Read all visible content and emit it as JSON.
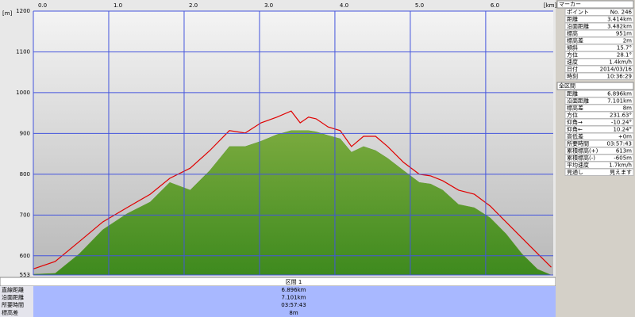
{
  "chart_data": {
    "type": "area-line",
    "y_unit": "[m]",
    "x_unit": "[km]",
    "xlim": [
      0,
      6.896
    ],
    "xticks": [
      {
        "value": 0,
        "label": "0.0"
      },
      {
        "value": 1,
        "label": "1.0"
      },
      {
        "value": 2,
        "label": "2.0"
      },
      {
        "value": 3,
        "label": "3.0"
      },
      {
        "value": 4,
        "label": "4.0"
      },
      {
        "value": 5,
        "label": "5.0"
      },
      {
        "value": 6,
        "label": "6.0"
      }
    ],
    "ylim": [
      553,
      1200
    ],
    "yticks": [
      553,
      600,
      700,
      800,
      900,
      1000,
      1100,
      1200
    ],
    "grid": true,
    "x": [
      0,
      0.29,
      0.61,
      0.92,
      1.24,
      1.55,
      1.81,
      2.08,
      2.34,
      2.6,
      2.81,
      3.02,
      3.23,
      3.42,
      3.54,
      3.65,
      3.75,
      3.91,
      4.07,
      4.22,
      4.38,
      4.54,
      4.7,
      4.91,
      5.12,
      5.27,
      5.43,
      5.64,
      5.85,
      6.06,
      6.27,
      6.48,
      6.69,
      6.87
    ],
    "series": [
      {
        "kind": "area",
        "color": "#5f9a2e",
        "values": [
          555,
          557,
          605,
          664,
          703,
          732,
          780,
          761,
          809,
          868,
          868,
          881,
          897,
          907,
          907,
          907,
          904,
          895,
          887,
          854,
          868,
          858,
          839,
          809,
          780,
          776,
          761,
          726,
          718,
          693,
          654,
          605,
          567,
          553
        ]
      },
      {
        "kind": "line",
        "color": "#e00000",
        "values": [
          568,
          586,
          635,
          683,
          718,
          751,
          790,
          815,
          858,
          907,
          901,
          926,
          940,
          955,
          926,
          940,
          936,
          916,
          907,
          868,
          893,
          893,
          868,
          829,
          800,
          796,
          784,
          761,
          751,
          722,
          683,
          644,
          605,
          572
        ]
      }
    ]
  },
  "section": {
    "title": "区間 1",
    "rows": [
      [
        "直線距離",
        "6.896km"
      ],
      [
        "沿面距離",
        "7.101km"
      ],
      [
        "所要時間",
        "03:57:43"
      ],
      [
        "標高差",
        "8m"
      ]
    ]
  },
  "marker_panel": {
    "title": "マーカー",
    "rows": [
      [
        "ポイント",
        "No. 246"
      ],
      [
        "距離",
        "3.414km"
      ],
      [
        "沿面距離",
        "3.482km"
      ],
      [
        "標高",
        "951m"
      ],
      [
        "標高差",
        "2m"
      ],
      [
        "傾斜",
        "15.7°"
      ],
      [
        "方位",
        "28.1°"
      ],
      [
        "速度",
        "1.4km/h"
      ],
      [
        "日付",
        "2014/03/16"
      ],
      [
        "時刻",
        "10:36:29"
      ]
    ]
  },
  "total_panel": {
    "title": "全区間",
    "rows": [
      [
        "距離",
        "6.896km"
      ],
      [
        "沿面距離",
        "7.101km"
      ],
      [
        "標高差",
        "8m"
      ],
      [
        "方位",
        "231.63°"
      ],
      [
        "仰角→",
        "-10.24°"
      ],
      [
        "仰角←",
        "10.24°"
      ],
      [
        "高低差",
        "+0m"
      ],
      [
        "所要時間",
        "03:57:43"
      ],
      [
        "累積標高(+)",
        "613m"
      ],
      [
        "累積標高(-)",
        "-605m"
      ],
      [
        "平均速度",
        "1.7km/h"
      ],
      [
        "見通し",
        "見えます"
      ]
    ]
  }
}
